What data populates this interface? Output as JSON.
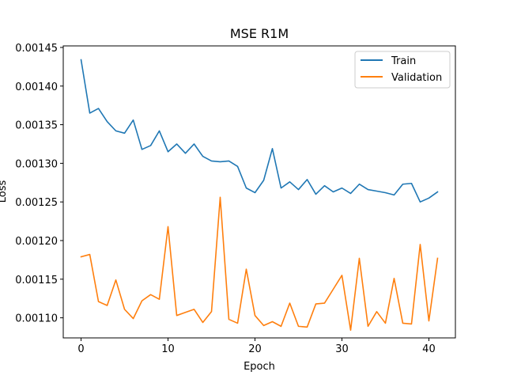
{
  "chart_data": {
    "type": "line",
    "title": "MSE R1M",
    "xlabel": "Epoch",
    "ylabel": "Loss",
    "xlim": [
      -2.05,
      43.05
    ],
    "ylim": [
      0.001074,
      0.001452
    ],
    "xticks": [
      0,
      10,
      20,
      30,
      40
    ],
    "xtick_labels": [
      "0",
      "10",
      "20",
      "30",
      "40"
    ],
    "yticks": [
      0.0011,
      0.00115,
      0.0012,
      0.00125,
      0.0013,
      0.00135,
      0.0014,
      0.00145
    ],
    "ytick_labels": [
      "0.00110",
      "0.00115",
      "0.00120",
      "0.00125",
      "0.00130",
      "0.00135",
      "0.00140",
      "0.00145"
    ],
    "grid": false,
    "legend_position": "top-right",
    "x": [
      0,
      1,
      2,
      3,
      4,
      5,
      6,
      7,
      8,
      9,
      10,
      11,
      12,
      13,
      14,
      15,
      16,
      17,
      18,
      19,
      20,
      21,
      22,
      23,
      24,
      25,
      26,
      27,
      28,
      29,
      30,
      31,
      32,
      33,
      34,
      35,
      36,
      37,
      38,
      39,
      40,
      41
    ],
    "series": [
      {
        "name": "Train",
        "color": "#1f77b4",
        "values": [
          0.001434,
          0.001365,
          0.001371,
          0.001354,
          0.001342,
          0.001339,
          0.001356,
          0.001318,
          0.001323,
          0.001342,
          0.001315,
          0.001325,
          0.001313,
          0.001325,
          0.001309,
          0.001303,
          0.001302,
          0.001303,
          0.001296,
          0.001268,
          0.001262,
          0.001278,
          0.001319,
          0.001268,
          0.001276,
          0.001266,
          0.001279,
          0.00126,
          0.001271,
          0.001263,
          0.001268,
          0.001261,
          0.001273,
          0.001266,
          0.001264,
          0.001262,
          0.001259,
          0.001273,
          0.001274,
          0.00125,
          0.001255,
          0.001263
        ]
      },
      {
        "name": "Validation",
        "color": "#ff7f0e",
        "values": [
          0.001179,
          0.001182,
          0.001121,
          0.001116,
          0.001149,
          0.001111,
          0.001099,
          0.001122,
          0.00113,
          0.001124,
          0.001218,
          0.001103,
          0.001107,
          0.001111,
          0.001094,
          0.001108,
          0.001256,
          0.001098,
          0.001093,
          0.001163,
          0.001103,
          0.00109,
          0.001095,
          0.001089,
          0.001119,
          0.001089,
          0.001088,
          0.001118,
          0.001119,
          0.001137,
          0.001155,
          0.001084,
          0.001177,
          0.001089,
          0.001108,
          0.001093,
          0.001151,
          0.001093,
          0.001092,
          0.001195,
          0.001096,
          0.001177
        ]
      }
    ]
  }
}
